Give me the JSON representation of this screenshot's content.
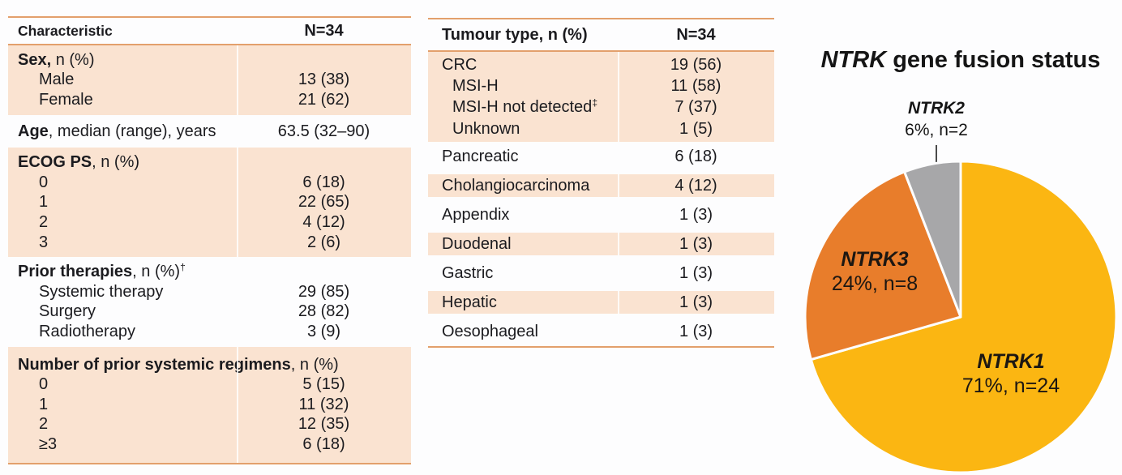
{
  "left_table": {
    "header": {
      "col1": "Characteristic",
      "col2": "N=34"
    },
    "sections": [
      {
        "bg": "peach",
        "rows": [
          {
            "bold": "Sex,",
            "rest": " n (%)"
          },
          {
            "label": "Male",
            "indent": 1,
            "value": "13 (38)"
          },
          {
            "label": "Female",
            "indent": 1,
            "value": "21 (62)"
          }
        ]
      },
      {
        "bg": "white",
        "single": true,
        "rows": [
          {
            "bold": "Age",
            "rest": ", median (range), years",
            "value": "63.5 (32–90)"
          }
        ]
      },
      {
        "bg": "peach",
        "rows": [
          {
            "bold": "ECOG PS",
            "rest": ", n (%)"
          },
          {
            "label": "0",
            "indent": 1,
            "value": "6 (18)"
          },
          {
            "label": "1",
            "indent": 1,
            "value": "22 (65)"
          },
          {
            "label": "2",
            "indent": 1,
            "value": "4 (12)"
          },
          {
            "label": "3",
            "indent": 1,
            "value": "2 (6)"
          }
        ]
      },
      {
        "bg": "white",
        "rows": [
          {
            "bold": "Prior therapies",
            "rest": ", n (%)",
            "sup": "†"
          },
          {
            "label": "Systemic therapy",
            "indent": 1,
            "value": "29 (85)"
          },
          {
            "label": "Surgery",
            "indent": 1,
            "value": "28 (82)"
          },
          {
            "label": "Radiotherapy",
            "indent": 1,
            "value": "3 (9)"
          }
        ]
      },
      {
        "bg": "peach",
        "rows": [
          {
            "bold": "Number of prior systemic regimens",
            "rest": ", n (%)"
          },
          {
            "label": "0",
            "indent": 1,
            "value": "5 (15)"
          },
          {
            "label": "1",
            "indent": 1,
            "value": "11 (32)"
          },
          {
            "label": "2",
            "indent": 1,
            "value": "12 (35)"
          },
          {
            "label": "≥3",
            "indent": 1,
            "value": "6 (18)"
          }
        ]
      }
    ]
  },
  "middle_table": {
    "header": {
      "col1": "Tumour type, n (%)",
      "col2": "N=34"
    },
    "sections": [
      {
        "bg": "peach",
        "rows": [
          {
            "label": "CRC",
            "value": "19 (56)"
          },
          {
            "label": "MSI-H",
            "indent": 1,
            "value": "11 (58)"
          },
          {
            "label": "MSI-H not detected",
            "sup": "‡",
            "indent": 1,
            "value": "7 (37)"
          },
          {
            "label": "Unknown",
            "indent": 1,
            "value": "1 (5)"
          }
        ]
      },
      {
        "bg": "white",
        "single": true,
        "rows": [
          {
            "label": "Pancreatic",
            "value": "6 (18)"
          }
        ]
      },
      {
        "bg": "peach",
        "single": true,
        "rows": [
          {
            "label": "Cholangiocarcinoma",
            "value": "4 (12)"
          }
        ]
      },
      {
        "bg": "white",
        "single": true,
        "rows": [
          {
            "label": "Appendix",
            "value": "1 (3)"
          }
        ]
      },
      {
        "bg": "peach",
        "single": true,
        "rows": [
          {
            "label": "Duodenal",
            "value": "1 (3)"
          }
        ]
      },
      {
        "bg": "white",
        "single": true,
        "rows": [
          {
            "label": "Gastric",
            "value": "1 (3)"
          }
        ]
      },
      {
        "bg": "peach",
        "single": true,
        "rows": [
          {
            "label": "Hepatic",
            "value": "1 (3)"
          }
        ]
      },
      {
        "bg": "white",
        "single": true,
        "rows": [
          {
            "label": "Oesophageal",
            "value": "1 (3)"
          }
        ]
      }
    ]
  },
  "chart_data": {
    "type": "pie",
    "title": "NTRK gene fusion status",
    "title_italic": "NTRK",
    "title_rest": " gene fusion status",
    "total_n": 34,
    "start_angle_deg": 0,
    "direction": "clockwise",
    "legend_position": "labels-on-slices",
    "slices": [
      {
        "name": "NTRK1",
        "value": 24,
        "pct": 71,
        "label": "71%, n=24",
        "color": "#FBB612"
      },
      {
        "name": "NTRK3",
        "value": 8,
        "pct": 24,
        "label": "24%, n=8",
        "color": "#E87D2B"
      },
      {
        "name": "NTRK2",
        "value": 2,
        "pct": 6,
        "label": "6%, n=2",
        "color": "#A7A7A9"
      }
    ]
  },
  "colors": {
    "row_peach": "#FAE3D1",
    "table_border": "#E3A06C",
    "background": "#FDFDFE"
  }
}
